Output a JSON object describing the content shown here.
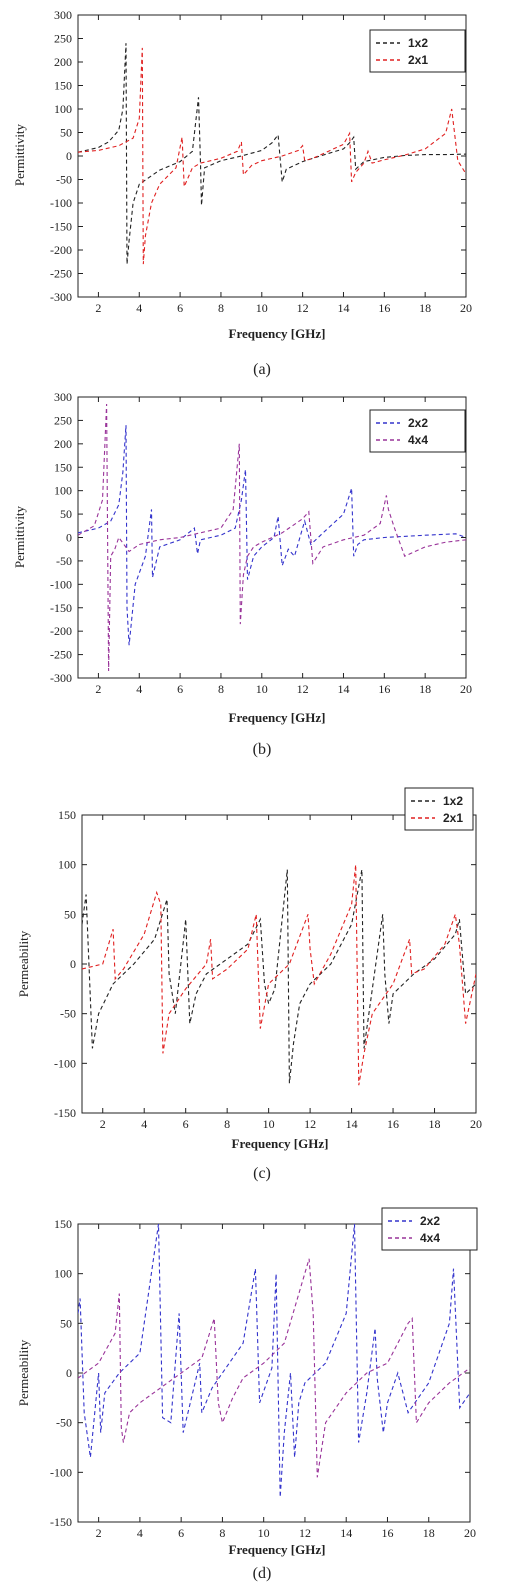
{
  "chart_data": [
    {
      "type": "line",
      "caption": "(a)",
      "xlabel": "Frequency [GHz]",
      "ylabel": "Permittivity",
      "xlim": [
        1,
        20
      ],
      "ylim": [
        -300,
        300
      ],
      "xticks": [
        2,
        4,
        6,
        8,
        10,
        12,
        14,
        16,
        18,
        20
      ],
      "yticks": [
        -300,
        -250,
        -200,
        -150,
        -100,
        -50,
        0,
        50,
        100,
        150,
        200,
        250,
        300
      ],
      "legend_position": "top-right",
      "series": [
        {
          "name": "1x2",
          "color": "#222222",
          "x": [
            1,
            2,
            2.5,
            3,
            3.2,
            3.35,
            3.4,
            3.5,
            3.7,
            4,
            5,
            6,
            6.6,
            6.9,
            7,
            7.05,
            7.2,
            8,
            9,
            10,
            10.5,
            10.8,
            11,
            11.2,
            12,
            13,
            14,
            14.3,
            14.5,
            14.6,
            15,
            16,
            17,
            18,
            19,
            20
          ],
          "y": [
            8,
            18,
            30,
            55,
            100,
            240,
            -230,
            -180,
            -100,
            -60,
            -30,
            -12,
            10,
            125,
            -15,
            -105,
            -25,
            -10,
            0,
            12,
            28,
            45,
            -55,
            -28,
            -12,
            2,
            15,
            28,
            40,
            -28,
            -12,
            -3,
            1,
            3,
            3,
            4
          ]
        },
        {
          "name": "2x1",
          "color": "#e02020",
          "x": [
            1,
            2,
            3,
            3.7,
            4,
            4.15,
            4.2,
            4.3,
            4.6,
            5,
            5.8,
            6.1,
            6.2,
            6.6,
            7,
            8,
            8.8,
            9,
            9.1,
            9.5,
            10,
            11,
            11.8,
            12,
            12.1,
            12.5,
            13,
            14,
            14.3,
            14.4,
            14.6,
            15,
            15.2,
            15.4,
            16,
            17,
            18,
            19,
            19.3,
            19.6,
            20
          ],
          "y": [
            8,
            12,
            22,
            38,
            80,
            230,
            -230,
            -170,
            -100,
            -60,
            -25,
            40,
            -65,
            -25,
            -15,
            -5,
            10,
            30,
            -40,
            -20,
            -10,
            0,
            12,
            22,
            -10,
            -5,
            5,
            25,
            48,
            -55,
            -35,
            -15,
            10,
            -15,
            -8,
            2,
            15,
            48,
            100,
            -10,
            -38
          ]
        }
      ]
    },
    {
      "type": "line",
      "caption": "(b)",
      "xlabel": "Frequency [GHz]",
      "ylabel": "Permittivity",
      "xlim": [
        1,
        20
      ],
      "ylim": [
        -300,
        300
      ],
      "xticks": [
        2,
        4,
        6,
        8,
        10,
        12,
        14,
        16,
        18,
        20
      ],
      "yticks": [
        -300,
        -250,
        -200,
        -150,
        -100,
        -50,
        0,
        50,
        100,
        150,
        200,
        250,
        300
      ],
      "legend_position": "top-right",
      "series": [
        {
          "name": "2x2",
          "color": "#3333cc",
          "x": [
            1,
            2,
            2.6,
            3,
            3.2,
            3.35,
            3.4,
            3.5,
            3.8,
            4.3,
            4.6,
            4.65,
            5,
            6,
            6.7,
            6.85,
            7,
            8,
            8.7,
            9,
            9.2,
            9.3,
            9.6,
            10,
            10.6,
            10.8,
            11,
            11.3,
            11.6,
            12,
            12.1,
            12.4,
            13,
            14,
            14.4,
            14.5,
            14.7,
            15,
            16,
            18,
            19.5,
            20
          ],
          "y": [
            10,
            20,
            35,
            70,
            140,
            240,
            -150,
            -230,
            -100,
            -40,
            60,
            -85,
            -20,
            -5,
            20,
            -35,
            -5,
            5,
            20,
            80,
            145,
            -90,
            -40,
            -20,
            0,
            45,
            -60,
            -25,
            -40,
            20,
            35,
            -15,
            10,
            50,
            105,
            -40,
            -15,
            -5,
            0,
            5,
            8,
            0
          ]
        },
        {
          "name": "4x4",
          "color": "#993399",
          "x": [
            1,
            1.8,
            2.2,
            2.4,
            2.5,
            2.6,
            2.8,
            3,
            3.5,
            4,
            5,
            6,
            7,
            8,
            8.6,
            8.9,
            8.95,
            9.1,
            9.3,
            9.6,
            10,
            11,
            12,
            12.3,
            12.5,
            13,
            14,
            15,
            15.8,
            16.1,
            16.2,
            16.5,
            17,
            18,
            19,
            20
          ],
          "y": [
            5,
            25,
            80,
            285,
            -285,
            -40,
            -25,
            0,
            -30,
            -15,
            -5,
            0,
            10,
            20,
            60,
            200,
            -185,
            -80,
            -40,
            -20,
            -10,
            10,
            40,
            55,
            -55,
            -20,
            -5,
            5,
            30,
            90,
            60,
            20,
            -40,
            -20,
            -10,
            -5
          ]
        }
      ]
    },
    {
      "type": "line",
      "caption": "(c)",
      "xlabel": "Frequency [GHz]",
      "ylabel": "Permeability",
      "xlim": [
        1,
        20
      ],
      "ylim": [
        -150,
        150
      ],
      "xticks": [
        2,
        4,
        6,
        8,
        10,
        12,
        14,
        16,
        18,
        20
      ],
      "yticks": [
        -150,
        -100,
        -50,
        0,
        50,
        100,
        150
      ],
      "legend_position": "top-right",
      "series": [
        {
          "name": "1x2",
          "color": "#222222",
          "x": [
            1,
            1.2,
            1.5,
            1.8,
            2.5,
            3.5,
            4.5,
            5.1,
            5.2,
            5.5,
            5.9,
            6,
            6.2,
            6.5,
            7,
            8,
            9,
            9.6,
            9.8,
            10,
            10.3,
            10.9,
            11,
            11.2,
            11.5,
            12,
            13,
            14,
            14.5,
            14.6,
            14.8,
            15.5,
            15.6,
            15.8,
            16,
            17,
            18,
            19,
            19.2,
            19.5,
            20
          ],
          "y": [
            40,
            70,
            -85,
            -50,
            -20,
            0,
            25,
            65,
            -10,
            -50,
            25,
            45,
            -60,
            -30,
            -10,
            5,
            20,
            45,
            -20,
            -40,
            -25,
            95,
            -120,
            -80,
            -40,
            -20,
            0,
            40,
            95,
            -85,
            -55,
            50,
            -10,
            -60,
            -30,
            -10,
            5,
            30,
            45,
            -30,
            -20
          ]
        },
        {
          "name": "2x1",
          "color": "#e02020",
          "x": [
            1,
            2,
            2.5,
            2.6,
            3,
            4,
            4.6,
            4.8,
            4.9,
            5.2,
            6,
            7,
            7.2,
            7.3,
            8,
            9,
            9.4,
            9.6,
            10,
            11,
            11.9,
            12,
            12.2,
            13,
            14,
            14.2,
            14.35,
            14.6,
            15,
            16,
            16.8,
            16.9,
            17.5,
            18.5,
            19,
            19.2,
            19.5,
            20
          ],
          "y": [
            -5,
            0,
            35,
            -15,
            -5,
            30,
            72,
            60,
            -90,
            -50,
            -25,
            0,
            25,
            -15,
            -5,
            15,
            50,
            -65,
            -20,
            0,
            50,
            15,
            -20,
            10,
            60,
            100,
            -122,
            -90,
            -50,
            -20,
            25,
            -10,
            -5,
            20,
            50,
            20,
            -60,
            -10
          ]
        }
      ]
    },
    {
      "type": "line",
      "caption": "(d)",
      "xlabel": "Frequency [GHz]",
      "ylabel": "Permeability",
      "xlim": [
        1,
        20
      ],
      "ylim": [
        -150,
        150
      ],
      "xticks": [
        2,
        4,
        6,
        8,
        10,
        12,
        14,
        16,
        18,
        20
      ],
      "yticks": [
        -150,
        -100,
        -50,
        0,
        50,
        100,
        150
      ],
      "legend_position": "top-right",
      "series": [
        {
          "name": "2x2",
          "color": "#3333cc",
          "x": [
            1,
            1.1,
            1.3,
            1.6,
            2,
            2.1,
            2.3,
            3,
            4,
            4.9,
            5.1,
            5.5,
            5.9,
            6.1,
            6.5,
            6.9,
            7,
            7.5,
            8,
            9,
            9.6,
            9.8,
            10.4,
            10.6,
            10.8,
            11,
            11.3,
            11.5,
            11.7,
            12,
            13,
            14,
            14.4,
            14.6,
            15,
            15.4,
            15.5,
            15.8,
            16,
            16.5,
            17,
            18,
            19,
            19.2,
            19.5,
            20
          ],
          "y": [
            60,
            75,
            -40,
            -85,
            0,
            -60,
            -20,
            0,
            20,
            150,
            -45,
            -50,
            60,
            -60,
            -25,
            10,
            -40,
            -15,
            0,
            30,
            105,
            -30,
            5,
            100,
            -125,
            -60,
            0,
            -85,
            -30,
            -10,
            10,
            60,
            150,
            -70,
            -20,
            45,
            -5,
            -60,
            -30,
            0,
            -40,
            -10,
            50,
            105,
            -35,
            -20
          ]
        },
        {
          "name": "4x4",
          "color": "#993399",
          "x": [
            1,
            2,
            2.8,
            3,
            3.1,
            3.2,
            3.5,
            4,
            5,
            6,
            7,
            7.6,
            7.8,
            8,
            8.5,
            9,
            10,
            11,
            12.2,
            12.4,
            12.6,
            13,
            14,
            15,
            16,
            17,
            17.2,
            17.4,
            18,
            19,
            20
          ],
          "y": [
            -5,
            10,
            40,
            80,
            -55,
            -70,
            -40,
            -30,
            -15,
            0,
            15,
            55,
            -30,
            -50,
            -25,
            -5,
            10,
            30,
            115,
            60,
            -105,
            -50,
            -20,
            0,
            10,
            50,
            55,
            -50,
            -30,
            -10,
            5
          ]
        }
      ]
    }
  ]
}
